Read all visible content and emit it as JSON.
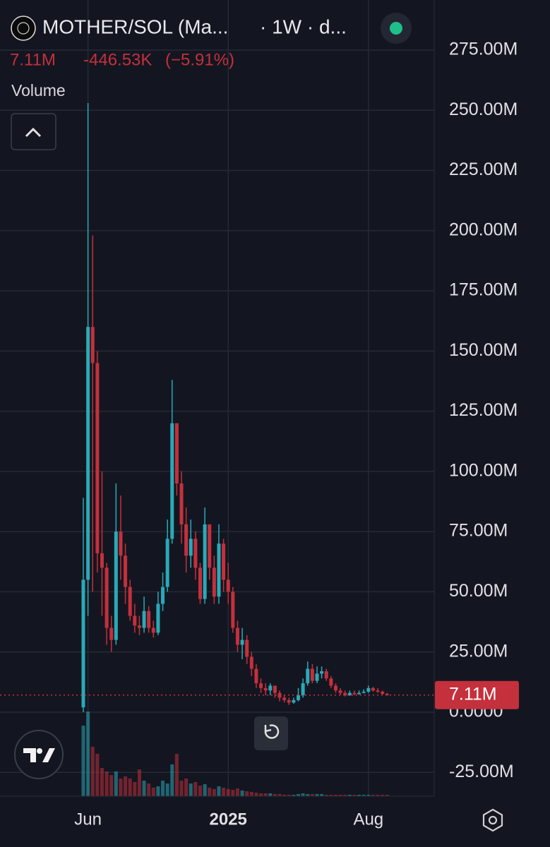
{
  "header": {
    "title": "MOTHER/SOL (Ma...",
    "interval": "· 1W · d...",
    "last": "7.11M",
    "change": "-446.53K",
    "change_pct": "(−5.91%)",
    "indicator": "Volume"
  },
  "chart_data": {
    "type": "candlestick",
    "categories": [
      null,
      "Jun",
      null,
      null,
      null,
      null,
      null,
      null,
      null,
      null,
      null,
      null,
      null,
      null,
      null,
      null,
      null,
      null,
      null,
      null,
      null,
      null,
      null,
      null,
      null,
      null,
      null,
      null,
      null,
      null,
      null,
      "2025",
      null,
      null,
      null,
      null,
      null,
      null,
      null,
      null,
      null,
      null,
      null,
      null,
      null,
      null,
      null,
      null,
      null,
      null,
      null,
      null,
      null,
      null,
      null,
      null,
      null,
      null,
      null,
      null,
      null,
      "Aug",
      null,
      null,
      null,
      null
    ],
    "open": [
      2,
      55,
      160,
      145,
      66,
      60,
      35,
      30,
      75,
      65,
      52,
      40,
      36,
      35,
      42,
      35,
      33,
      45,
      52,
      72,
      120,
      95,
      78,
      65,
      72,
      60,
      47,
      78,
      60,
      48,
      70,
      55,
      50,
      35,
      28,
      30,
      23,
      18,
      12,
      10,
      9,
      11,
      8,
      6,
      5,
      4,
      5,
      7,
      12,
      18,
      13,
      16,
      17,
      14,
      11,
      9,
      8,
      7,
      8,
      7.5,
      8,
      8.5,
      10,
      9,
      8.5,
      7.6
    ],
    "high": [
      89,
      253,
      198,
      150,
      100,
      62,
      40,
      95,
      90,
      70,
      55,
      45,
      40,
      48,
      44,
      38,
      50,
      58,
      80,
      138,
      120,
      100,
      85,
      80,
      75,
      62,
      85,
      78,
      65,
      78,
      72,
      62,
      52,
      38,
      35,
      32,
      25,
      20,
      14,
      12,
      12,
      11,
      9,
      7,
      6,
      6,
      10,
      14,
      21,
      20,
      19,
      19,
      18,
      15,
      12,
      10,
      9,
      9,
      9,
      9,
      9.5,
      11,
      10.5,
      10,
      9,
      8
    ],
    "low": [
      0,
      40,
      50,
      58,
      40,
      28,
      25,
      28,
      55,
      45,
      38,
      33,
      32,
      33,
      33,
      31,
      32,
      42,
      50,
      70,
      90,
      70,
      58,
      60,
      55,
      45,
      45,
      55,
      45,
      45,
      50,
      45,
      33,
      25,
      22,
      20,
      15,
      10,
      8,
      7,
      7,
      6,
      4.5,
      4,
      3,
      3.5,
      4.5,
      6,
      11,
      12,
      12,
      14,
      13,
      10,
      8,
      7,
      6.5,
      6.8,
      7,
      7.2,
      7.8,
      8,
      8.5,
      8,
      7.2,
      6.9
    ],
    "close": [
      55,
      160,
      145,
      66,
      60,
      35,
      30,
      75,
      65,
      52,
      40,
      36,
      35,
      42,
      35,
      33,
      45,
      52,
      72,
      120,
      95,
      78,
      65,
      72,
      60,
      47,
      78,
      60,
      48,
      70,
      55,
      50,
      35,
      28,
      30,
      23,
      18,
      12,
      10,
      9,
      11,
      8,
      6,
      5,
      4,
      5,
      7,
      12,
      18,
      13,
      16,
      17,
      14,
      11,
      9,
      8,
      7,
      8,
      7.5,
      8,
      8.5,
      10,
      9,
      8.5,
      7.6,
      7.11
    ],
    "volume": [
      100,
      120,
      70,
      60,
      40,
      35,
      30,
      35,
      25,
      28,
      25,
      20,
      38,
      22,
      18,
      12,
      14,
      22,
      18,
      45,
      60,
      22,
      25,
      18,
      20,
      15,
      17,
      12,
      10,
      14,
      12,
      10,
      9,
      11,
      8,
      7,
      6,
      5,
      4,
      4,
      4,
      3,
      3,
      2,
      2,
      2,
      3,
      4,
      3,
      3,
      3,
      3,
      2,
      2,
      2,
      2,
      2,
      2,
      2,
      2,
      2,
      2,
      2,
      2,
      2,
      2
    ],
    "volume_ylim": [
      0,
      130
    ],
    "up_color": "#2aa9b8",
    "down_color": "#c4303c",
    "ylim": [
      -34.9,
      295.8
    ],
    "yticks": [
      {
        "value": 275,
        "label": "275.00M"
      },
      {
        "value": 250,
        "label": "250.00M"
      },
      {
        "value": 225,
        "label": "225.00M"
      },
      {
        "value": 200,
        "label": "200.00M"
      },
      {
        "value": 175,
        "label": "175.00M"
      },
      {
        "value": 150,
        "label": "150.00M"
      },
      {
        "value": 125,
        "label": "125.00M"
      },
      {
        "value": 100,
        "label": "100.00M"
      },
      {
        "value": 75,
        "label": "75.00M"
      },
      {
        "value": 50,
        "label": "50.00M"
      },
      {
        "value": 25,
        "label": "25.00M"
      },
      {
        "value": 0,
        "label": "0.0000"
      },
      {
        "value": -25,
        "label": "-25.00M"
      }
    ],
    "last_price": {
      "value": 7.11,
      "label": "7.11M"
    },
    "grid": true
  }
}
